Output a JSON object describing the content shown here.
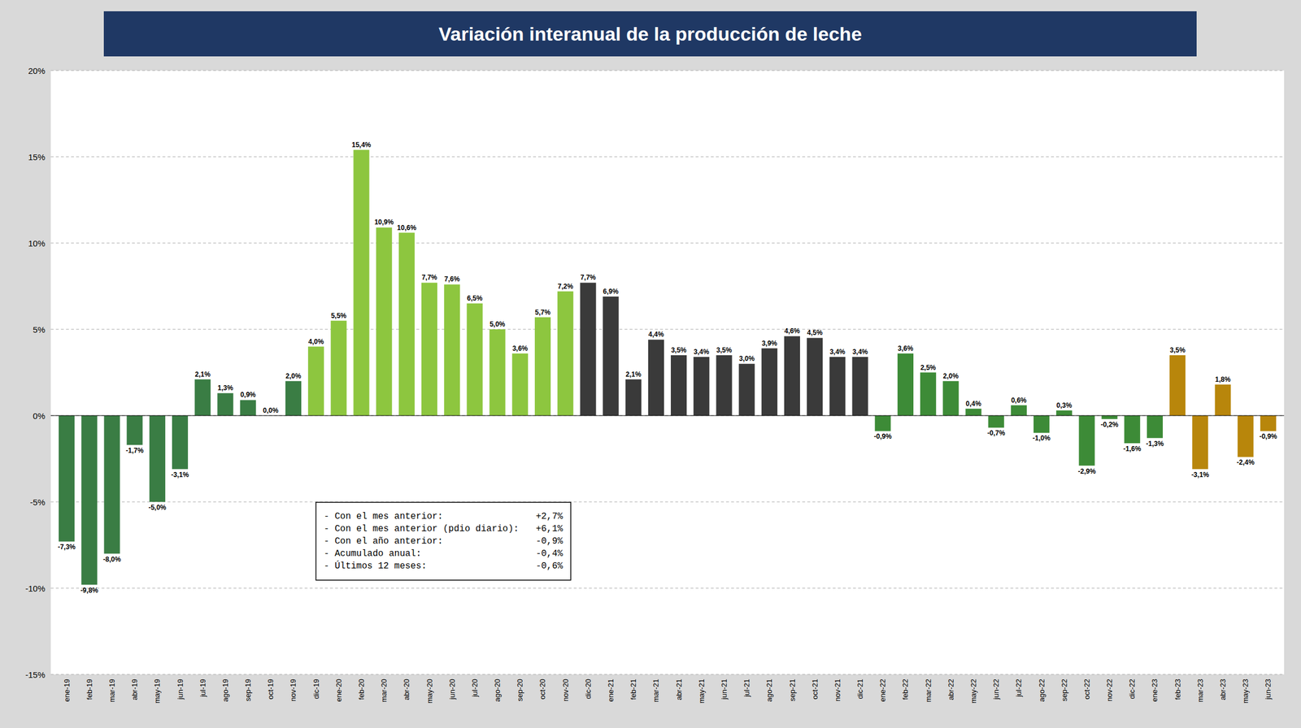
{
  "chart_data": {
    "type": "bar",
    "title": "Variación interanual de la producción de leche",
    "categories": [
      "ene-19",
      "feb-19",
      "mar-19",
      "abr-19",
      "may-19",
      "jun-19",
      "jul-19",
      "ago-19",
      "sep-19",
      "oct-19",
      "nov-19",
      "dic-19",
      "ene-20",
      "feb-20",
      "mar-20",
      "abr-20",
      "may-20",
      "jun-20",
      "jul-20",
      "ago-20",
      "sep-20",
      "oct-20",
      "nov-20",
      "dic-20",
      "ene-21",
      "feb-21",
      "mar-21",
      "abr-21",
      "may-21",
      "jun-21",
      "jul-21",
      "ago-21",
      "sep-21",
      "oct-21",
      "nov-21",
      "dic-21",
      "ene-22",
      "feb-22",
      "mar-22",
      "abr-22",
      "may-22",
      "jun-22",
      "jul-22",
      "ago-22",
      "sep-22",
      "oct-22",
      "nov-22",
      "dic-22",
      "ene-23",
      "feb-23",
      "mar-23",
      "abr-23",
      "may-23",
      "jun-23"
    ],
    "values": [
      -7.3,
      -9.8,
      -8.0,
      -1.7,
      -5.0,
      -3.1,
      2.1,
      1.3,
      0.9,
      0.0,
      2.0,
      4.0,
      5.5,
      15.4,
      10.9,
      10.6,
      7.7,
      7.6,
      6.5,
      5.0,
      3.6,
      5.7,
      7.2,
      7.7,
      6.9,
      2.1,
      4.4,
      3.5,
      3.4,
      3.5,
      3.0,
      3.9,
      4.6,
      4.5,
      3.4,
      3.4,
      -0.9,
      3.6,
      2.5,
      2.0,
      0.4,
      -0.7,
      0.6,
      -1.0,
      0.3,
      -2.9,
      -0.2,
      -1.6,
      -1.3,
      3.5,
      -3.1,
      1.8,
      -2.4,
      -0.9
    ],
    "value_labels": [
      "-7,3%",
      "-9,8%",
      "-8,0%",
      "-1,7%",
      "-5,0%",
      "-3,1%",
      "2,1%",
      "1,3%",
      "0,9%",
      "0,0%",
      "2,0%",
      "4,0%",
      "5,5%",
      "15,4%",
      "10,9%",
      "10,6%",
      "7,7%",
      "7,6%",
      "6,5%",
      "5,0%",
      "3,6%",
      "5,7%",
      "7,2%",
      "7,7%",
      "6,9%",
      "2,1%",
      "4,4%",
      "3,5%",
      "3,4%",
      "3,5%",
      "3,0%",
      "3,9%",
      "4,6%",
      "4,5%",
      "3,4%",
      "3,4%",
      "-0,9%",
      "3,6%",
      "2,5%",
      "2,0%",
      "0,4%",
      "-0,7%",
      "0,6%",
      "-1,0%",
      "0,3%",
      "-2,9%",
      "-0,2%",
      "-1,6%",
      "-1,3%",
      "3,5%",
      "-3,1%",
      "1,8%",
      "-2,4%",
      "-0,9%"
    ],
    "colors": [
      "#3a7d44",
      "#3a7d44",
      "#3a7d44",
      "#3a7d44",
      "#3a7d44",
      "#3a7d44",
      "#3a7d44",
      "#3a7d44",
      "#3a7d44",
      "#3a7d44",
      "#3a7d44",
      "#8dc63f",
      "#8dc63f",
      "#8dc63f",
      "#8dc63f",
      "#8dc63f",
      "#8dc63f",
      "#8dc63f",
      "#8dc63f",
      "#8dc63f",
      "#8dc63f",
      "#8dc63f",
      "#8dc63f",
      "#3a3a3a",
      "#3a3a3a",
      "#3a3a3a",
      "#3a3a3a",
      "#3a3a3a",
      "#3a3a3a",
      "#3a3a3a",
      "#3a3a3a",
      "#3a3a3a",
      "#3a3a3a",
      "#3a3a3a",
      "#3a3a3a",
      "#3a3a3a",
      "#3d8b37",
      "#3d8b37",
      "#3d8b37",
      "#3d8b37",
      "#3d8b37",
      "#3d8b37",
      "#3d8b37",
      "#3d8b37",
      "#3d8b37",
      "#3d8b37",
      "#3d8b37",
      "#3d8b37",
      "#3d8b37",
      "#b8860b",
      "#b8860b",
      "#b8860b",
      "#b8860b",
      "#b8860b"
    ],
    "data_labels": true,
    "ylim": [
      -15,
      20
    ],
    "yticks": [
      {
        "value": -15,
        "label": "-15%"
      },
      {
        "value": -10,
        "label": "-10%"
      },
      {
        "value": -5,
        "label": "-5%"
      },
      {
        "value": 0,
        "label": "0%"
      },
      {
        "value": 5,
        "label": "5%"
      },
      {
        "value": 10,
        "label": "10%"
      },
      {
        "value": 15,
        "label": "15%"
      },
      {
        "value": 20,
        "label": "20%"
      }
    ],
    "grid": true,
    "annotations": [
      [
        "- Con el mes anterior:",
        "+2,7%"
      ],
      [
        "- Con el mes anterior (pdio diario):",
        "+6,1%"
      ],
      [
        "- Con el año anterior:",
        "-0,9%"
      ],
      [
        "- Acumulado anual:",
        "-0,4%"
      ],
      [
        "- Últimos 12 meses:",
        "-0,6%"
      ]
    ]
  }
}
